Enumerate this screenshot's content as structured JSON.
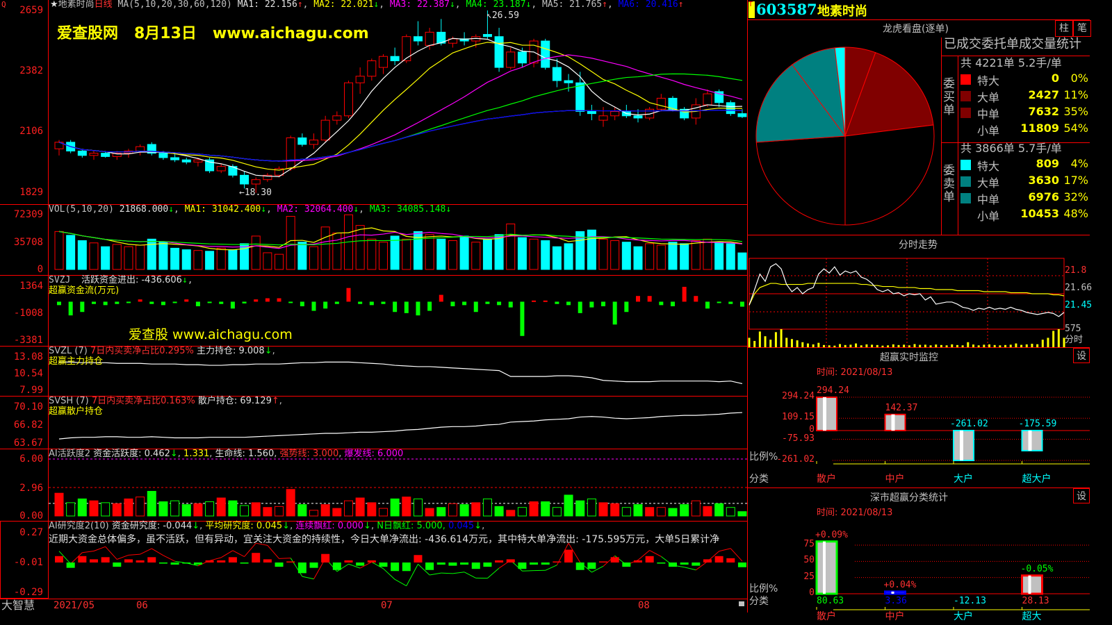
{
  "header": {
    "stock_name": "地素时尚",
    "period": "日线",
    "ma_label": "MA(5,10,20,30,60,120)",
    "ma1": "MA1: 22.156",
    "ma2": "MA2: 22.021",
    "ma3": "MA3: 22.387",
    "ma4": "MA4: 23.187",
    "ma5": "MA5: 21.765",
    "ma6": "MA6: 20.416",
    "high_marker": "26.59",
    "low_marker": "18.30"
  },
  "watermark": {
    "site": "爱查股网",
    "date": "8月13日",
    "url": "www.aichagu.com",
    "url2": "爱查股 www.aichagu.com"
  },
  "price_axis": [
    "2659",
    "2382",
    "2106",
    "1829"
  ],
  "vol_panel": {
    "title": "VOL(5,10,20)",
    "value": "21868.000",
    "ma1": "MA1: 31042.400",
    "ma2": "MA2: 32064.400",
    "ma3": "MA3: 34085.148",
    "axis": [
      "72309",
      "35708",
      "0"
    ]
  },
  "svzj_panel": {
    "title": "SVZJ",
    "label": "活跃资金进出: -436.606",
    "sub": "超赢资金流(万元)",
    "axis": [
      "1364",
      "-1008",
      "-3381"
    ]
  },
  "svzl_panel": {
    "title": "SVZL (7)",
    "ratio": "7日内买卖净占比0.295%",
    "hold": "主力持仓: 9.008",
    "sub": "超赢主力持仓",
    "axis": [
      "13.08",
      "10.54",
      "7.99"
    ]
  },
  "svsh_panel": {
    "title": "SVSH (7)",
    "ratio": "7日内买卖净占比0.163%",
    "hold": "散户持仓: 69.129",
    "sub": "超赢散户持仓",
    "axis": [
      "70.10",
      "66.82",
      "63.67"
    ]
  },
  "ai_active_panel": {
    "title": "AI活跃度2",
    "label": "资金活跃度: 0.462",
    "v2": "1.331",
    "life": "生命线: 1.560",
    "strong": "强势线: 3.000",
    "burst": "爆发线: 6.000",
    "axis": [
      "6.00",
      "2.96",
      "0.00"
    ]
  },
  "ai_research_panel": {
    "title": "AI研究度2(10)",
    "label": "资金研究度: -0.044",
    "avg": "平均研究度: 0.045",
    "cont": "连续飘红: 0.000",
    "nday": "N日飘红: 5.000,",
    "v5": "0.045",
    "comment": "近期大资金总体偏多，虽不活跃，但有异动，宜关注大资金的持续性，今日大单净流出: -436.614万元，其中特大单净流出: -175.595万元，大单5日累计净",
    "axis": [
      "0.27",
      "-0.01",
      "-0.29"
    ]
  },
  "date_axis": {
    "app": "大智慧",
    "labels": [
      "2021/05",
      "06",
      "07",
      "08"
    ]
  },
  "colors": {
    "up": "#ff0000",
    "down": "#00ffff",
    "grid": "#ff0000",
    "ma": [
      "#ffffff",
      "#ffff00",
      "#ff00ff",
      "#00ff00",
      "#c0c0c0",
      "#0000ff"
    ]
  },
  "chart_data": {
    "type": "candlestick",
    "ohlc": [
      [
        20.3,
        20.7,
        20.0,
        20.6
      ],
      [
        20.6,
        20.7,
        20.1,
        20.2
      ],
      [
        20.2,
        20.3,
        19.9,
        20.0
      ],
      [
        20.0,
        20.2,
        19.8,
        20.1
      ],
      [
        20.1,
        20.2,
        19.9,
        19.95
      ],
      [
        19.95,
        20.2,
        19.8,
        20.1
      ],
      [
        20.1,
        20.3,
        19.9,
        20.2
      ],
      [
        20.2,
        20.5,
        20.0,
        20.4
      ],
      [
        20.5,
        20.6,
        20.0,
        20.1
      ],
      [
        20.1,
        20.2,
        19.8,
        19.9
      ],
      [
        19.9,
        20.1,
        19.7,
        19.8
      ],
      [
        19.8,
        19.9,
        19.6,
        19.7
      ],
      [
        19.7,
        19.9,
        19.5,
        19.8
      ],
      [
        19.8,
        19.9,
        19.2,
        19.3
      ],
      [
        19.3,
        19.6,
        19.2,
        19.5
      ],
      [
        19.5,
        19.6,
        19.0,
        19.1
      ],
      [
        19.1,
        19.3,
        18.5,
        18.7
      ],
      [
        18.7,
        19.0,
        18.3,
        18.9
      ],
      [
        18.9,
        19.2,
        18.8,
        19.1
      ],
      [
        19.1,
        19.5,
        19.0,
        19.4
      ],
      [
        19.4,
        20.9,
        19.3,
        20.8
      ],
      [
        20.8,
        21.0,
        20.4,
        20.5
      ],
      [
        20.5,
        21.0,
        20.3,
        20.7
      ],
      [
        20.7,
        21.8,
        20.6,
        21.6
      ],
      [
        21.6,
        22.0,
        21.4,
        21.8
      ],
      [
        21.8,
        23.4,
        21.7,
        23.3
      ],
      [
        23.3,
        24.0,
        22.8,
        23.6
      ],
      [
        23.6,
        24.4,
        23.4,
        24.3
      ],
      [
        24.0,
        24.6,
        23.7,
        24.5
      ],
      [
        24.5,
        24.9,
        24.1,
        24.3
      ],
      [
        24.3,
        25.5,
        24.2,
        25.4
      ],
      [
        25.4,
        26.1,
        25.0,
        25.2
      ],
      [
        25.0,
        25.8,
        24.8,
        25.6
      ],
      [
        25.6,
        26.2,
        25.0,
        25.1
      ],
      [
        25.1,
        25.4,
        24.9,
        25.3
      ],
      [
        25.3,
        25.6,
        25.0,
        25.2
      ],
      [
        25.2,
        25.5,
        24.9,
        25.4
      ],
      [
        25.5,
        26.59,
        25.3,
        25.4
      ],
      [
        25.4,
        25.8,
        23.8,
        24.0
      ],
      [
        24.0,
        24.9,
        23.9,
        24.7
      ],
      [
        24.7,
        24.9,
        24.0,
        24.2
      ],
      [
        24.2,
        25.3,
        24.0,
        25.2
      ],
      [
        25.2,
        25.3,
        23.9,
        24.0
      ],
      [
        24.0,
        24.4,
        23.1,
        23.4
      ],
      [
        23.4,
        23.7,
        22.9,
        23.3
      ],
      [
        23.3,
        23.8,
        21.8,
        22.0
      ],
      [
        22.0,
        22.3,
        21.6,
        21.9
      ],
      [
        21.6,
        22.2,
        21.3,
        21.8
      ],
      [
        21.8,
        22.2,
        21.6,
        22.0
      ],
      [
        22.0,
        22.3,
        21.7,
        21.8
      ],
      [
        21.8,
        22.1,
        21.5,
        21.7
      ],
      [
        21.7,
        22.2,
        21.6,
        22.1
      ],
      [
        22.1,
        22.8,
        22.0,
        22.6
      ],
      [
        22.6,
        22.7,
        22.0,
        22.1
      ],
      [
        22.1,
        22.2,
        21.6,
        21.7
      ],
      [
        21.7,
        22.6,
        21.4,
        22.3
      ],
      [
        22.3,
        23.0,
        22.2,
        22.8
      ],
      [
        22.9,
        23.0,
        22.2,
        22.4
      ],
      [
        22.4,
        22.5,
        21.8,
        21.9
      ],
      [
        21.9,
        22.1,
        21.7,
        21.76
      ]
    ],
    "price_range": [
      18.29,
      26.59
    ],
    "volume": [
      50000,
      45000,
      38000,
      35000,
      30000,
      33000,
      30000,
      32000,
      40000,
      36000,
      28000,
      26000,
      25000,
      24000,
      28000,
      26000,
      34000,
      44000,
      22000,
      20000,
      70000,
      36000,
      30000,
      56000,
      48000,
      72000,
      58000,
      40000,
      36000,
      44000,
      40000,
      50000,
      46000,
      40000,
      38000,
      44000,
      36000,
      40000,
      46000,
      60000,
      42000,
      40000,
      38000,
      30000,
      34000,
      50000,
      52000,
      40000,
      38000,
      36000,
      30000,
      34000,
      32000,
      36000,
      34000,
      38000,
      40000,
      36000,
      34000,
      21868
    ],
    "volume_max": 72309,
    "svzj": [
      -300,
      -1200,
      -900,
      -200,
      -300,
      -200,
      -100,
      200,
      -200,
      -300,
      -100,
      200,
      -400,
      -100,
      -200,
      -600,
      -150,
      200,
      300,
      300,
      -100,
      -400,
      -800,
      -600,
      -200,
      1200,
      -200,
      -300,
      -200,
      -900,
      -1000,
      -1200,
      -800,
      600,
      -400,
      -300,
      -900,
      -200,
      -300,
      -500,
      -3000,
      100,
      100,
      -200,
      -300,
      -1000,
      -500,
      -400,
      -2000,
      -900,
      500,
      500,
      -300,
      -400,
      1300,
      500,
      -600,
      -100,
      -200,
      -436
    ],
    "svzj_range": [
      -3381,
      1364
    ],
    "svzl": [
      12.3,
      12.3,
      12.2,
      12.2,
      12.2,
      12.1,
      12.1,
      12.1,
      12.0,
      12.0,
      12.0,
      11.9,
      11.9,
      11.8,
      11.8,
      11.9,
      11.9,
      12.0,
      12.0,
      12.0,
      12.1,
      12.2,
      12.2,
      12.3,
      12.3,
      12.3,
      12.2,
      12.1,
      12.0,
      11.8,
      11.7,
      11.6,
      11.6,
      11.5,
      11.4,
      11.3,
      11.2,
      11.1,
      11.0,
      10.1,
      10.1,
      10.1,
      10.1,
      10.2,
      10.2,
      10.1,
      9.9,
      9.5,
      9.4,
      9.3,
      9.3,
      9.3,
      9.4,
      9.4,
      9.4,
      9.4,
      9.4,
      9.3,
      9.4,
      9.0
    ],
    "svzl_range": [
      7.99,
      13.08
    ],
    "svsh": [
      64.4,
      64.6,
      64.7,
      64.7,
      64.8,
      64.8,
      64.7,
      64.7,
      64.8,
      64.7,
      64.6,
      64.6,
      64.6,
      64.7,
      64.7,
      64.7,
      64.7,
      64.8,
      64.9,
      65.0,
      65.1,
      65.2,
      65.3,
      65.4,
      65.4,
      65.5,
      65.6,
      65.6,
      65.7,
      65.8,
      66.0,
      66.1,
      66.3,
      66.5,
      66.6,
      66.6,
      66.7,
      66.9,
      67.0,
      67.4,
      67.5,
      67.6,
      67.8,
      67.9,
      68.0,
      68.3,
      68.4,
      68.3,
      68.1,
      68.0,
      68.1,
      68.2,
      68.4,
      68.5,
      68.6,
      68.6,
      68.7,
      68.8,
      69.0,
      69.1
    ],
    "svsh_range": [
      63.67,
      70.1
    ],
    "ai_active": [
      2.4,
      1.4,
      1.8,
      1.6,
      1.4,
      1.3,
      1.8,
      2.0,
      2.6,
      1.5,
      1.6,
      1.2,
      1.3,
      1.5,
      1.9,
      1.6,
      1.1,
      1.4,
      0.9,
      1.0,
      2.8,
      1.2,
      0.6,
      1.2,
      0.8,
      1.6,
      1.9,
      1.4,
      0.8,
      1.8,
      2.0,
      1.8,
      0.8,
      0.9,
      1.3,
      1.2,
      1.4,
      1.8,
      1.0,
      0.6,
      0.9,
      1.5,
      1.5,
      0.9,
      2.2,
      1.6,
      1.8,
      1.4,
      1.3,
      0.9,
      1.2,
      0.9,
      0.9,
      0.8,
      1.2,
      1.6,
      1.0,
      1.3,
      0.9,
      0.46
    ],
    "ai_active_range": [
      0,
      6
    ],
    "ai_research": [
      0.06,
      -0.05,
      0.06,
      0.03,
      0.05,
      -0.04,
      0.03,
      0.02,
      0.05,
      -0.01,
      -0.02,
      -0.01,
      -0.02,
      0.02,
      0.02,
      0.05,
      -0.01,
      0.09,
      0.03,
      -0.04,
      0.01,
      -0.1,
      -0.05,
      0.08,
      -0.07,
      0.02,
      -0.03,
      0.02,
      -0.04,
      -0.08,
      -0.08,
      0.07,
      -0.07,
      -0.02,
      -0.03,
      -0.02,
      -0.06,
      -0.04,
      0.02,
      0.03,
      -0.06,
      -0.02,
      -0.02,
      0.01,
      0.12,
      -0.07,
      -0.06,
      0.01,
      0.05,
      -0.04,
      0.02,
      0.06,
      -0.01,
      -0.04,
      -0.02,
      -0.03,
      0.03,
      0.06,
      0.04,
      -0.044
    ],
    "ai_research_range": [
      -0.29,
      0.27
    ]
  },
  "right_panel": {
    "code_badge": "T",
    "code": "603587",
    "name": "地素时尚",
    "dragon": {
      "title": "龙虎看盘(逐单)",
      "tab1": "柱",
      "tab2": "笔",
      "stats_title": "已成交委托单成交量统计",
      "buy_side": "委买单",
      "sell_side": "委卖单",
      "buy_summary": "共 4221单 5.2手/单",
      "sell_summary": "共 3866单 5.7手/单",
      "buy": [
        {
          "name": "特大",
          "value": 0,
          "pct": "0%",
          "color": "#ff0000"
        },
        {
          "name": "大单",
          "value": 2427,
          "pct": "11%",
          "color": "#800000"
        },
        {
          "name": "中单",
          "value": 7632,
          "pct": "35%",
          "color": "#800000"
        },
        {
          "name": "小单",
          "value": 11809,
          "pct": "54%",
          "color": "#000000"
        }
      ],
      "sell": [
        {
          "name": "特大",
          "value": 809,
          "pct": "4%",
          "color": "#00ffff"
        },
        {
          "name": "大单",
          "value": 3630,
          "pct": "17%",
          "color": "#008080"
        },
        {
          "name": "中单",
          "value": 6976,
          "pct": "32%",
          "color": "#008080"
        },
        {
          "name": "小单",
          "value": 10453,
          "pct": "48%",
          "color": "#000000"
        }
      ]
    },
    "intraday": {
      "title": "分时走势",
      "axis": [
        "21.8",
        "21.66",
        "21.45"
      ],
      "vol_label": "575",
      "label": "分时",
      "price": [
        21.55,
        21.7,
        21.85,
        21.78,
        21.92,
        21.95,
        21.9,
        21.75,
        21.68,
        21.72,
        21.66,
        21.7,
        21.72,
        21.85,
        21.9,
        21.86,
        21.92,
        21.84,
        21.88,
        21.86,
        21.88,
        21.82,
        21.8,
        21.76,
        21.7,
        21.68,
        21.7,
        21.66,
        21.67,
        21.64,
        21.66,
        21.65,
        21.66,
        21.6,
        21.63,
        21.56,
        21.57,
        21.58,
        21.58,
        21.56,
        21.53,
        21.52,
        21.5,
        21.52,
        21.51,
        21.53,
        21.51,
        21.52,
        21.51,
        21.53,
        21.51,
        21.5,
        21.48,
        21.47,
        21.46,
        21.47,
        21.48,
        21.47,
        21.44,
        21.48
      ],
      "avg": [
        21.55,
        21.66,
        21.72,
        21.74,
        21.76,
        21.76,
        21.75,
        21.75,
        21.75,
        21.75,
        21.75,
        21.76,
        21.76,
        21.76,
        21.76,
        21.76,
        21.76,
        21.76,
        21.76,
        21.76,
        21.76,
        21.75,
        21.75,
        21.74,
        21.74,
        21.73,
        21.73,
        21.73,
        21.72,
        21.72,
        21.72,
        21.72,
        21.71,
        21.71,
        21.71,
        21.7,
        21.7,
        21.7,
        21.7,
        21.69,
        21.69,
        21.69,
        21.69,
        21.69,
        21.68,
        21.68,
        21.68,
        21.68,
        21.68,
        21.67,
        21.67,
        21.67,
        21.67,
        21.66,
        21.66,
        21.66,
        21.66,
        21.65,
        21.65,
        21.64
      ],
      "volume": [
        300,
        200,
        500,
        350,
        240,
        480,
        575,
        300,
        260,
        220,
        160,
        120,
        90,
        140,
        70,
        60,
        50,
        100,
        70,
        80,
        120,
        60,
        90,
        80,
        70,
        50,
        60,
        90,
        70,
        80,
        60,
        100,
        75,
        80,
        60,
        85,
        70,
        60,
        90,
        70,
        60,
        160,
        85,
        60,
        80,
        90,
        70,
        60,
        70,
        80,
        120,
        75,
        90,
        110,
        95,
        240,
        300,
        520,
        575,
        300
      ],
      "range": [
        21.3,
        22.0
      ]
    },
    "monitor": {
      "title": "超赢实时监控",
      "time": "时间: 2021/08/13",
      "axis": [
        "294.24",
        "109.15",
        "0",
        "-75.93",
        "-261.02"
      ],
      "ratio_label": "比例%",
      "cat_label": "分类",
      "bars": [
        {
          "cat": "散户",
          "value": 294.24,
          "label": "294.24",
          "color": "#ff0000"
        },
        {
          "cat": "中户",
          "value": 142.37,
          "label": "142.37",
          "color": "#ff0000"
        },
        {
          "cat": "大户",
          "value": -261.02,
          "label": "-261.02",
          "color": "#00ffff"
        },
        {
          "cat": "超大户",
          "value": -175.59,
          "label": "-175.59",
          "color": "#00ffff"
        }
      ],
      "tab": "设"
    },
    "shenzhen": {
      "title": "深市超赢分类统计",
      "time": "时间: 2021/08/13",
      "axis": [
        "75",
        "50",
        "25",
        "0"
      ],
      "ratio_label": "比例%",
      "cat_label": "分类",
      "tab": "设",
      "bars": [
        {
          "cat": "散户",
          "value": 80.63,
          "label": "80.63",
          "pct": "+0.09%",
          "pct_color": "#ff3030",
          "color": "#00ff00",
          "cat_color": "#ff3030",
          "label_color": "#00ff00"
        },
        {
          "cat": "中户",
          "value": 3.36,
          "label": "3.36",
          "pct": "+0.04%",
          "pct_color": "#ff3030",
          "color": "#0000ff",
          "cat_color": "#ff3030",
          "label_color": "#0000ff"
        },
        {
          "cat": "大户",
          "value": -12.13,
          "label": "-12.13",
          "pct": "",
          "pct_color": "#00ff00",
          "color": "#00ffff",
          "cat_color": "#00ffff",
          "label_color": "#00ffff"
        },
        {
          "cat": "超大",
          "value": 28.13,
          "label": "28.13",
          "pct": "-0.05%",
          "pct_color": "#00ff00",
          "color": "#ff0000",
          "cat_color": "#00ffff",
          "label_color": "#ff3030"
        }
      ]
    }
  }
}
